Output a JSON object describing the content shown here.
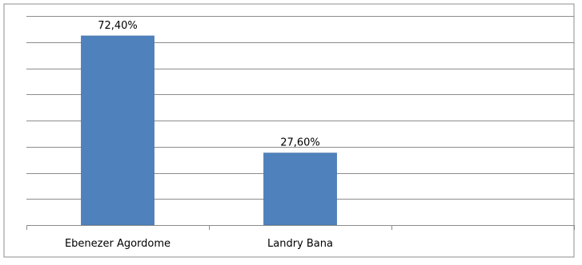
{
  "chart_data": {
    "type": "bar",
    "categories": [
      "Ebenezer Agordome",
      "Landry Bana",
      ""
    ],
    "values": [
      72.4,
      27.6,
      null
    ],
    "data_labels": [
      "72,40%",
      "27,60%",
      ""
    ],
    "ylim": [
      0,
      80
    ],
    "grid": true,
    "legend": "none",
    "bar_color": "#4F81BD",
    "title": "",
    "xlabel": "",
    "ylabel": ""
  }
}
